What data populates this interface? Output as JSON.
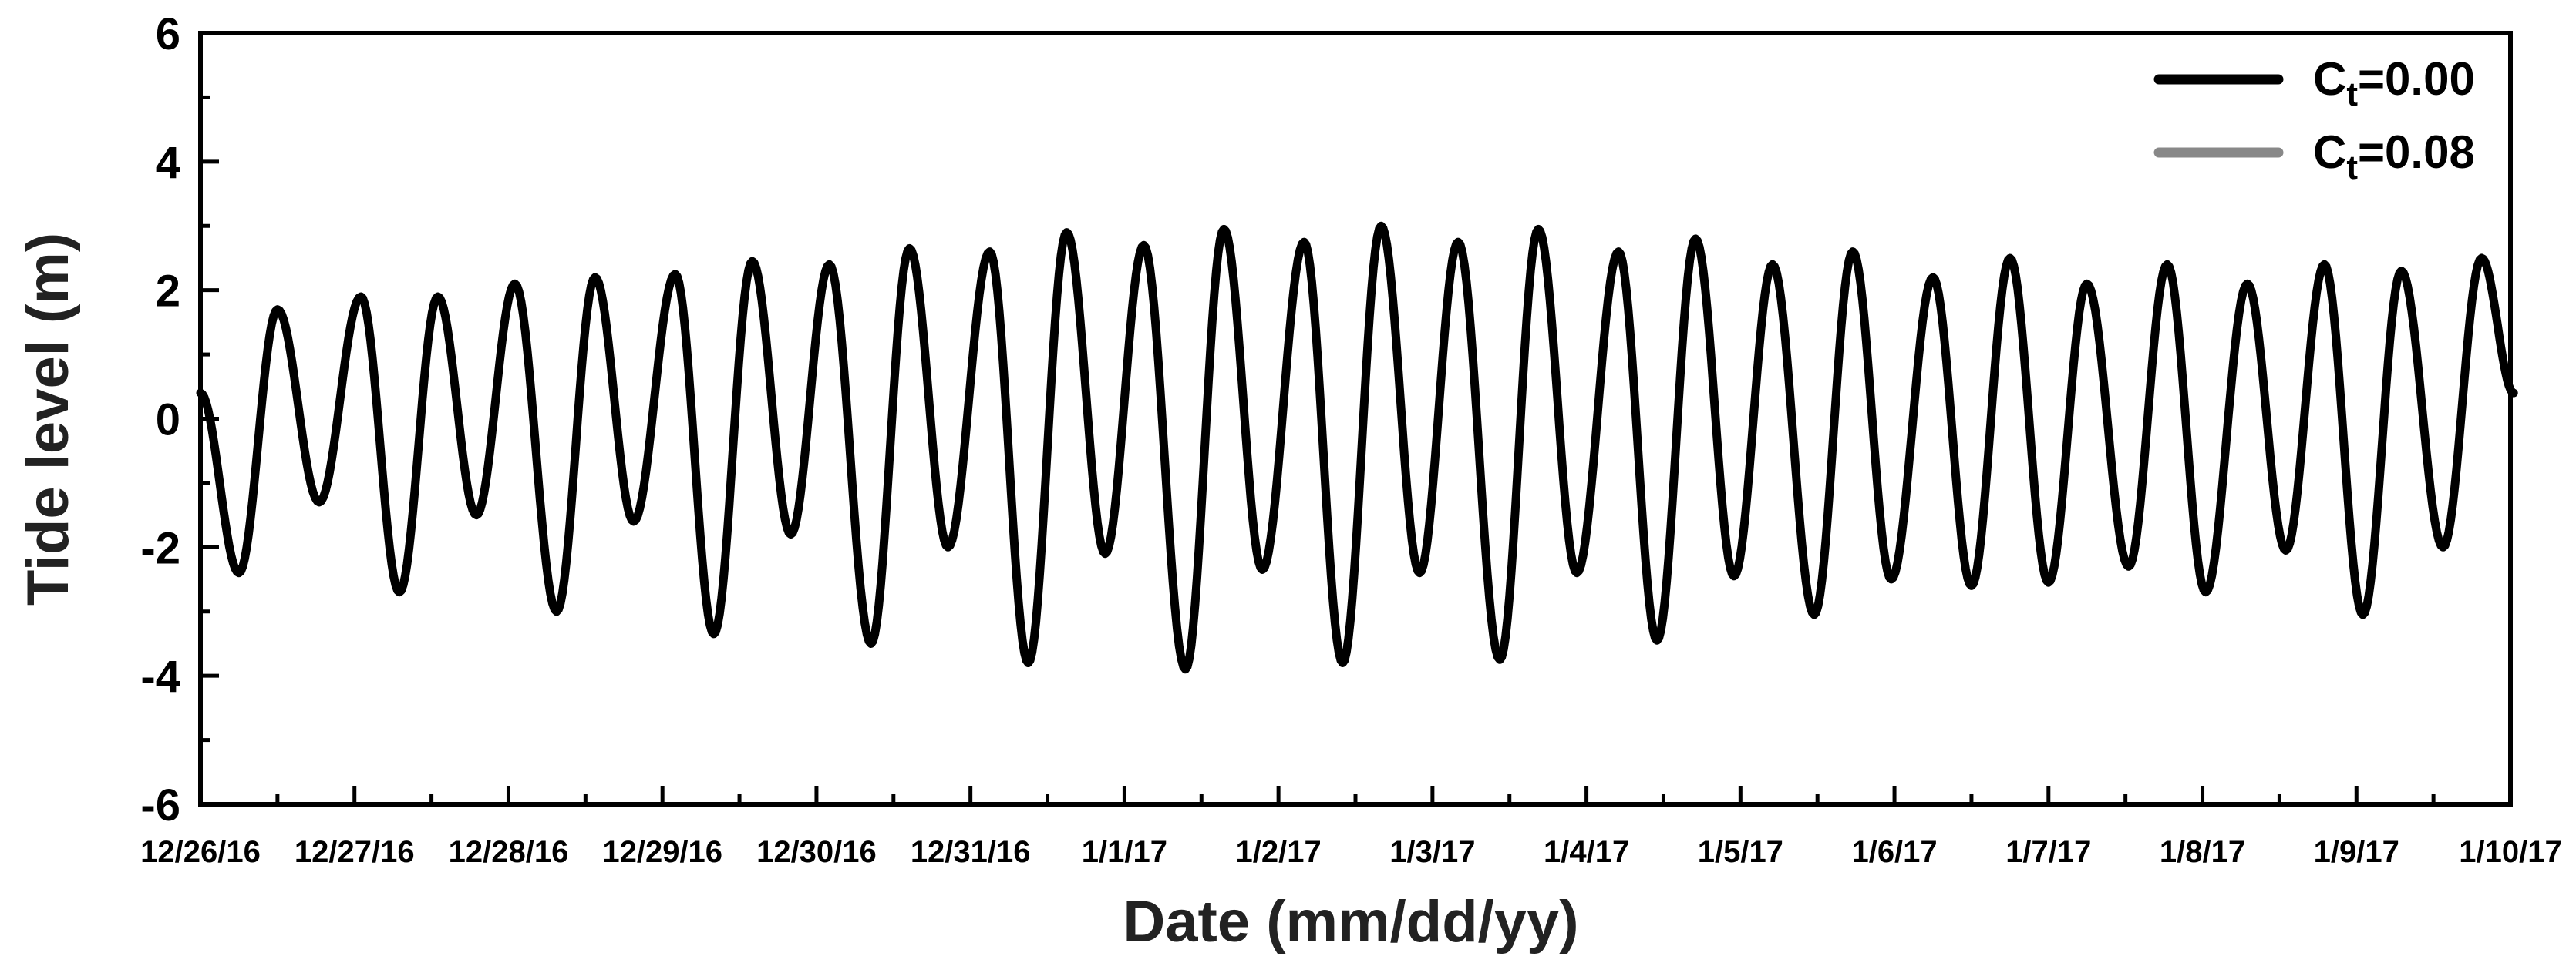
{
  "chart_data": {
    "type": "line",
    "title": "",
    "xlabel": "Date (mm/dd/yy)",
    "ylabel": "Tide level (m)",
    "ylim": [
      -6,
      6
    ],
    "yticks": [
      -6,
      -4,
      -2,
      0,
      2,
      4,
      6
    ],
    "xlim": [
      "12/26/16",
      "1/10/17"
    ],
    "xtick_labels": [
      "12/26/16",
      "12/27/16",
      "12/28/16",
      "12/29/16",
      "12/30/16",
      "12/31/16",
      "1/1/17",
      "1/2/17",
      "1/3/17",
      "1/4/17",
      "1/5/17",
      "1/6/17",
      "1/7/17",
      "1/8/17",
      "1/9/17",
      "1/10/17"
    ],
    "grid": false,
    "legend_position": "top-right",
    "legend": [
      {
        "base": "C",
        "sub": "t",
        "suffix": "=0.00",
        "color": "#000000"
      },
      {
        "base": "C",
        "sub": "t",
        "suffix": "=0.08",
        "color": "#888888"
      }
    ],
    "series": [
      {
        "legend_index": 0,
        "color": "#000000",
        "x": [
          "12/26/16 00:00",
          "12/26/16 06:00",
          "12/26/16 12:00",
          "12/26/16 18:30",
          "12/27/16 01:00",
          "12/27/16 07:00",
          "12/27/16 13:00",
          "12/27/16 19:00",
          "12/28/16 01:00",
          "12/28/16 07:30",
          "12/28/16 13:30",
          "12/28/16 19:30",
          "12/29/16 02:00",
          "12/29/16 08:00",
          "12/29/16 14:00",
          "12/29/16 20:00",
          "12/30/16 02:00",
          "12/30/16 08:30",
          "12/30/16 14:30",
          "12/30/16 20:30",
          "12/31/16 03:00",
          "12/31/16 09:00",
          "12/31/16 15:00",
          "12/31/16 21:00",
          "1/1/17 03:00",
          "1/1/17 09:30",
          "1/1/17 15:30",
          "1/1/17 21:30",
          "1/2/17 04:00",
          "1/2/17 10:00",
          "1/2/17 16:00",
          "1/2/17 22:00",
          "1/3/17 04:00",
          "1/3/17 10:30",
          "1/3/17 16:30",
          "1/3/17 22:30",
          "1/4/17 05:00",
          "1/4/17 11:00",
          "1/4/17 17:00",
          "1/4/17 23:00",
          "1/5/17 05:00",
          "1/5/17 11:30",
          "1/5/17 17:30",
          "1/5/17 23:30",
          "1/6/17 06:00",
          "1/6/17 12:00",
          "1/6/17 18:00",
          "1/7/17 00:00",
          "1/7/17 06:00",
          "1/7/17 12:30",
          "1/7/17 18:30",
          "1/8/17 00:30",
          "1/8/17 07:00",
          "1/8/17 13:00",
          "1/8/17 19:00",
          "1/9/17 01:00",
          "1/9/17 07:00",
          "1/9/17 13:30",
          "1/9/17 19:30",
          "1/10/17 00:30",
          "1/10/17 00:00"
        ],
        "values": [
          0.4,
          -2.4,
          1.7,
          -1.3,
          1.9,
          -2.7,
          1.9,
          -1.5,
          2.1,
          -3.0,
          2.2,
          -1.6,
          2.25,
          -3.35,
          2.45,
          -1.8,
          2.4,
          -3.5,
          2.65,
          -2.0,
          2.6,
          -3.8,
          2.9,
          -2.1,
          2.7,
          -3.9,
          2.95,
          -2.35,
          2.75,
          -3.8,
          3.0,
          -2.4,
          2.75,
          -3.75,
          2.95,
          -2.4,
          2.6,
          -3.45,
          2.8,
          -2.45,
          2.4,
          -3.05,
          2.6,
          -2.5,
          2.2,
          -2.6,
          2.5,
          -2.55,
          2.1,
          -2.3,
          2.4,
          -2.7,
          2.1,
          -2.05,
          2.4,
          -3.05,
          2.3,
          -2.0,
          2.5,
          0.4,
          0.4
        ]
      }
    ]
  }
}
